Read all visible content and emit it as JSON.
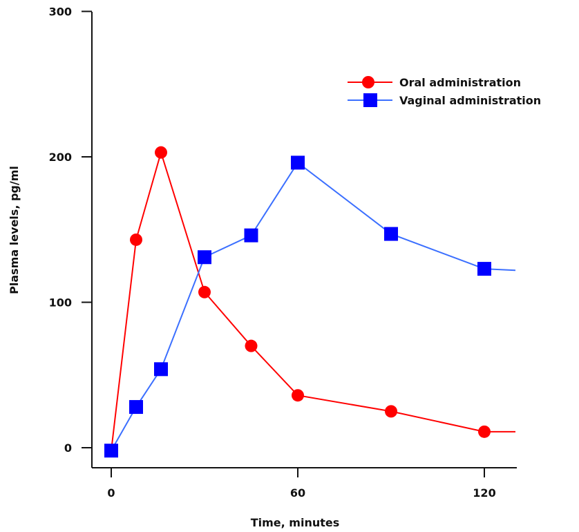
{
  "chart_data": {
    "type": "line",
    "xlabel": "Time, minutes",
    "ylabel": "Plasma levels, pg/ml",
    "xlim": [
      0,
      130
    ],
    "ylim": [
      0,
      300
    ],
    "x_ticks": [
      0,
      60,
      120
    ],
    "y_ticks": [
      0,
      100,
      200,
      300
    ],
    "x_tick_labels": [
      "0",
      "60",
      "120"
    ],
    "y_tick_labels": [
      "0",
      "100",
      "200",
      "300"
    ],
    "legend_position": "top-right",
    "grid": false,
    "series": [
      {
        "name": "Oral administration",
        "color": "#ff0000",
        "marker": "circle",
        "x": [
          0,
          8,
          16,
          30,
          45,
          60,
          90,
          120
        ],
        "y": [
          -2,
          143,
          203,
          107,
          70,
          36,
          25,
          11
        ],
        "line_end": {
          "x": 130,
          "y": 11
        }
      },
      {
        "name": "Vaginal administration",
        "color": "#0000ff",
        "line_color": "#3b6fff",
        "marker": "square",
        "x": [
          0,
          8,
          16,
          30,
          45,
          60,
          90,
          120
        ],
        "y": [
          -2,
          28,
          54,
          131,
          146,
          196,
          147,
          123
        ],
        "line_end": {
          "x": 130,
          "y": 122
        }
      }
    ]
  }
}
